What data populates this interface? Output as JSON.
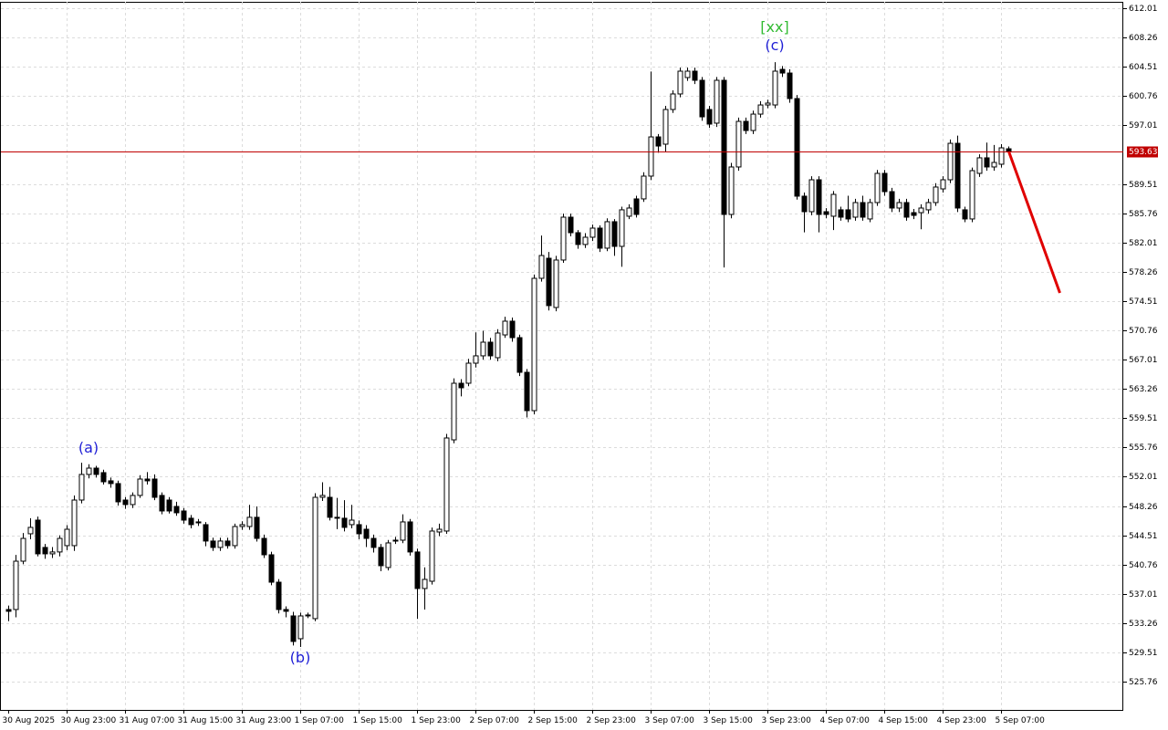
{
  "chart_data": {
    "type": "candlestick",
    "ylim": [
      522.14,
      612.83
    ],
    "yticks": [
      612.01,
      608.26,
      604.51,
      600.76,
      597.01,
      589.51,
      585.76,
      582.01,
      578.26,
      574.51,
      570.76,
      567.01,
      563.26,
      559.51,
      555.76,
      552.01,
      548.26,
      544.51,
      540.76,
      537.01,
      533.26,
      529.51,
      525.76
    ],
    "grid": true,
    "bull_color": "#ffffff",
    "bear_color": "#000000",
    "categories": [
      "30 Aug 2025",
      null,
      null,
      null,
      null,
      null,
      null,
      null,
      "30 Aug 23:00",
      null,
      null,
      null,
      null,
      null,
      null,
      null,
      "31 Aug 07:00",
      null,
      null,
      null,
      null,
      null,
      null,
      null,
      "31 Aug 15:00",
      null,
      null,
      null,
      null,
      null,
      null,
      null,
      "31 Aug 23:00",
      null,
      null,
      null,
      null,
      null,
      null,
      null,
      "1 Sep 07:00",
      null,
      null,
      null,
      null,
      null,
      null,
      null,
      "1 Sep 15:00",
      null,
      null,
      null,
      null,
      null,
      null,
      null,
      "1 Sep 23:00",
      null,
      null,
      null,
      null,
      null,
      null,
      null,
      "2 Sep 07:00",
      null,
      null,
      null,
      null,
      null,
      null,
      null,
      "2 Sep 15:00",
      null,
      null,
      null,
      null,
      null,
      null,
      null,
      "2 Sep 23:00",
      null,
      null,
      null,
      null,
      null,
      null,
      null,
      "3 Sep 07:00",
      null,
      null,
      null,
      null,
      null,
      null,
      null,
      "3 Sep 15:00",
      null,
      null,
      null,
      null,
      null,
      null,
      null,
      "3 Sep 23:00",
      null,
      null,
      null,
      null,
      null,
      null,
      null,
      "4 Sep 07:00",
      null,
      null,
      null,
      null,
      null,
      null,
      null,
      "4 Sep 15:00",
      null,
      null,
      null,
      null,
      null,
      null,
      null,
      "4 Sep 23:00",
      null,
      null,
      null,
      null,
      null,
      null,
      null,
      "5 Sep 07:00",
      null
    ],
    "open": [
      535.0,
      535.0,
      541.19,
      544.7,
      546.45,
      542.95,
      542.13,
      542.37,
      543.18,
      543.18,
      549.02,
      552.3,
      553.11,
      552.53,
      551.48,
      551.13,
      549.02,
      548.44,
      549.61,
      551.71,
      551.71,
      549.61,
      549.02,
      548.2,
      547.62,
      546.69,
      546.22,
      545.87,
      543.77,
      542.95,
      543.77,
      543.18,
      545.63,
      545.63,
      546.81,
      544.11,
      542.01,
      538.5,
      535.0,
      534.18,
      531.26,
      534.18,
      533.83,
      549.37,
      549.37,
      546.81,
      546.69,
      545.87,
      545.87,
      545.28,
      544.11,
      542.95,
      540.38,
      543.88,
      543.88,
      546.22,
      542.37,
      537.69,
      538.62,
      544.93,
      545.05,
      556.73,
      563.98,
      563.98,
      566.55,
      567.49,
      569.24,
      567.25,
      570.17,
      571.93,
      569.82,
      565.38,
      560.47,
      577.42,
      579.99,
      573.68,
      579.76,
      585.25,
      583.26,
      581.75,
      582.68,
      583.85,
      581.28,
      584.67,
      581.51,
      585.37,
      587.59,
      587.59,
      590.51,
      595.53,
      594.6,
      599.04,
      601.03,
      603.13,
      603.95,
      602.78,
      599.04,
      597.29,
      602.78,
      585.6,
      591.68,
      597.52,
      596.35,
      598.45,
      599.62,
      599.62,
      604.18,
      603.71,
      600.44,
      587.94,
      585.95,
      590.04,
      585.95,
      585.37,
      586.19,
      586.19,
      585.25,
      587.12,
      585.02,
      587.12,
      590.86,
      588.52,
      586.42,
      587.12,
      585.83,
      585.83,
      586.19,
      587.12,
      588.87,
      590.04,
      594.71,
      586.19,
      585.02,
      590.86,
      592.85,
      591.68,
      592.03,
      594.01
    ],
    "high": [
      535.5,
      542.0,
      544.8,
      546.7,
      546.9,
      543.4,
      543.0,
      544.5,
      545.8,
      549.6,
      553.8,
      553.6,
      553.4,
      552.9,
      551.9,
      551.5,
      549.4,
      550.0,
      552.2,
      552.6,
      552.3,
      550.0,
      549.4,
      548.8,
      548.0,
      547.1,
      546.6,
      546.2,
      544.2,
      544.2,
      544.2,
      546.0,
      546.3,
      548.4,
      548.2,
      544.6,
      542.4,
      538.9,
      535.4,
      534.7,
      534.6,
      534.6,
      549.9,
      551.3,
      550.7,
      549.3,
      549.0,
      548.4,
      546.4,
      545.8,
      544.6,
      543.4,
      543.9,
      544.3,
      547.2,
      546.6,
      542.8,
      540.4,
      545.5,
      546.0,
      557.5,
      564.6,
      564.5,
      567.1,
      570.5,
      570.7,
      569.8,
      570.9,
      572.5,
      572.4,
      570.2,
      565.8,
      577.9,
      582.9,
      580.8,
      580.3,
      585.7,
      585.7,
      583.6,
      583.2,
      584.3,
      584.2,
      585.1,
      585.0,
      586.6,
      586.9,
      588.0,
      591.0,
      603.9,
      595.9,
      599.5,
      601.5,
      604.4,
      604.4,
      604.4,
      603.2,
      599.5,
      603.2,
      603.2,
      592.2,
      598.0,
      598.0,
      598.9,
      600.1,
      600.3,
      605.1,
      604.6,
      604.2,
      600.9,
      588.4,
      590.5,
      590.5,
      586.4,
      588.6,
      586.6,
      588.0,
      587.6,
      588.0,
      587.6,
      591.3,
      591.3,
      589.0,
      587.6,
      587.6,
      586.3,
      586.9,
      587.6,
      589.6,
      590.5,
      595.2,
      595.7,
      586.6,
      591.6,
      593.3,
      594.8,
      594.5,
      594.6,
      594.3
    ],
    "low": [
      533.5,
      534.0,
      540.8,
      544.0,
      541.8,
      541.5,
      541.6,
      541.8,
      542.6,
      542.5,
      548.6,
      551.8,
      551.9,
      551.0,
      550.6,
      548.3,
      547.9,
      548.0,
      549.3,
      551.0,
      549.0,
      547.2,
      547.3,
      547.0,
      546.0,
      545.4,
      545.7,
      543.1,
      542.5,
      542.5,
      542.8,
      542.8,
      545.2,
      545.2,
      543.7,
      541.6,
      538.1,
      534.5,
      534.0,
      530.4,
      530.2,
      533.9,
      533.5,
      548.9,
      546.4,
      545.3,
      545.0,
      545.4,
      544.0,
      543.0,
      542.3,
      539.9,
      540.0,
      543.4,
      543.5,
      541.9,
      533.8,
      535.0,
      538.2,
      544.4,
      544.7,
      556.3,
      562.3,
      563.6,
      566.0,
      567.0,
      567.0,
      566.8,
      569.8,
      569.3,
      564.9,
      559.6,
      560.0,
      577.0,
      573.3,
      573.2,
      579.4,
      582.8,
      581.2,
      581.3,
      582.2,
      580.8,
      580.9,
      580.3,
      578.9,
      585.0,
      585.2,
      587.2,
      590.0,
      593.5,
      593.6,
      598.6,
      600.6,
      602.7,
      602.3,
      597.6,
      596.7,
      596.8,
      578.8,
      585.1,
      591.2,
      595.9,
      595.9,
      598.0,
      599.2,
      599.2,
      603.2,
      599.9,
      587.5,
      583.3,
      585.5,
      583.3,
      585.1,
      583.6,
      584.8,
      584.6,
      584.8,
      584.8,
      584.6,
      586.7,
      588.0,
      585.9,
      585.9,
      584.8,
      585.0,
      583.7,
      585.7,
      586.7,
      588.4,
      589.6,
      585.9,
      584.6,
      584.6,
      590.4,
      591.2,
      591.2,
      591.6,
      593.3
    ],
    "close": [
      534.77,
      541.19,
      544.11,
      545.52,
      542.13,
      542.13,
      542.37,
      544.11,
      545.28,
      549.02,
      552.3,
      553.11,
      552.3,
      551.36,
      551.13,
      548.79,
      548.44,
      549.61,
      551.71,
      551.48,
      549.37,
      547.62,
      547.62,
      547.39,
      546.45,
      545.87,
      546.1,
      543.77,
      542.95,
      543.77,
      543.18,
      545.63,
      545.87,
      546.81,
      544.11,
      542.01,
      538.5,
      535.0,
      534.77,
      530.91,
      534.18,
      534.3,
      549.37,
      549.61,
      546.81,
      546.69,
      545.52,
      546.45,
      544.7,
      544.11,
      542.95,
      540.61,
      543.53,
      543.77,
      546.22,
      542.37,
      537.69,
      538.86,
      545.05,
      545.28,
      556.97,
      563.98,
      563.4,
      566.55,
      567.49,
      569.24,
      567.49,
      570.41,
      571.93,
      569.82,
      565.38,
      560.47,
      577.42,
      580.34,
      573.92,
      579.76,
      585.25,
      583.26,
      581.75,
      582.68,
      583.85,
      581.28,
      584.67,
      581.51,
      586.19,
      586.42,
      585.6,
      590.51,
      595.53,
      594.36,
      599.04,
      601.03,
      603.95,
      603.95,
      602.78,
      598.1,
      597.17,
      602.78,
      585.6,
      591.68,
      597.52,
      596.35,
      598.45,
      599.62,
      599.86,
      603.95,
      603.71,
      600.44,
      587.94,
      585.95,
      590.04,
      585.6,
      585.6,
      588.17,
      585.25,
      585.02,
      587.12,
      585.25,
      587.12,
      590.86,
      588.52,
      586.42,
      587.12,
      585.25,
      585.48,
      586.42,
      587.12,
      589.11,
      590.04,
      594.71,
      586.42,
      585.02,
      591.21,
      592.85,
      591.68,
      592.26,
      594.13,
      593.66
    ],
    "last_price": {
      "value": 593.63,
      "color": "#c00000"
    },
    "forecast": {
      "color": "#e00000",
      "x": [
        137,
        144
      ],
      "values": [
        593.66,
        575.55
      ]
    },
    "annotations": [
      {
        "text": "(a)",
        "at": 11,
        "side": "above",
        "color": "#1f1fd6"
      },
      {
        "text": "(b)",
        "at": 40,
        "side": "below",
        "color": "#1f1fd6"
      },
      {
        "text": "(c)",
        "at": 105,
        "side": "above",
        "color": "#1f1fd6"
      },
      {
        "text": "[xx]",
        "at": 105,
        "side": "above",
        "color": "#33bb33"
      }
    ]
  }
}
